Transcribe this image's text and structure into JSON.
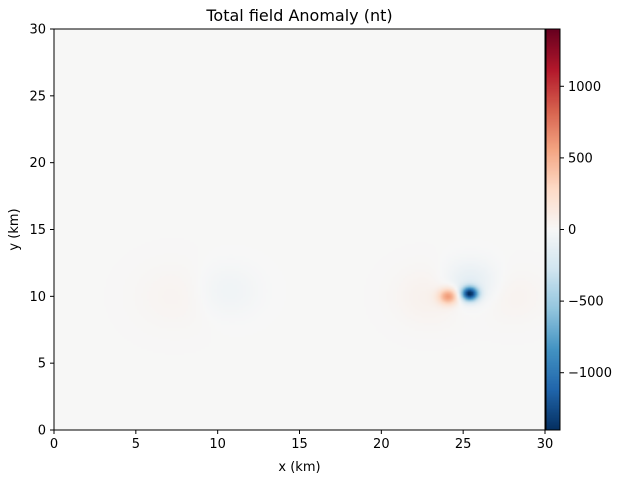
{
  "chart_data": {
    "type": "heatmap",
    "title": "Total field Anomaly (nt)",
    "xlabel": "x (km)",
    "ylabel": "y (km)",
    "xlim": [
      0,
      30
    ],
    "ylim": [
      0,
      30
    ],
    "x_ticks": [
      0,
      5,
      10,
      15,
      20,
      25,
      30
    ],
    "y_ticks": [
      0,
      5,
      10,
      15,
      20,
      25,
      30
    ],
    "colorbar": {
      "colormap": "RdBu_r",
      "range": [
        -1400,
        1400
      ],
      "ticks": [
        -1000,
        -500,
        0,
        500,
        1000
      ],
      "tick_labels": [
        "−1000",
        "−500",
        "0",
        "500",
        "1000"
      ]
    },
    "grid": false,
    "anomalies": [
      {
        "x": 10.6,
        "y": 10.4,
        "amplitude": -60,
        "spread": 1.3
      },
      {
        "x": 7.4,
        "y": 10.0,
        "amplitude": 35,
        "spread": 1.6
      },
      {
        "x": 24.1,
        "y": 10.0,
        "amplitude": 600,
        "spread": 0.42
      },
      {
        "x": 23.0,
        "y": 10.0,
        "amplitude": 60,
        "spread": 1.4
      },
      {
        "x": 25.4,
        "y": 10.2,
        "amplitude": -1380,
        "spread": 0.36
      },
      {
        "x": 25.4,
        "y": 11.0,
        "amplitude": -150,
        "spread": 1.1
      },
      {
        "x": 28.0,
        "y": 10.0,
        "amplitude": 40,
        "spread": 1.3
      }
    ],
    "background_value": 4
  }
}
